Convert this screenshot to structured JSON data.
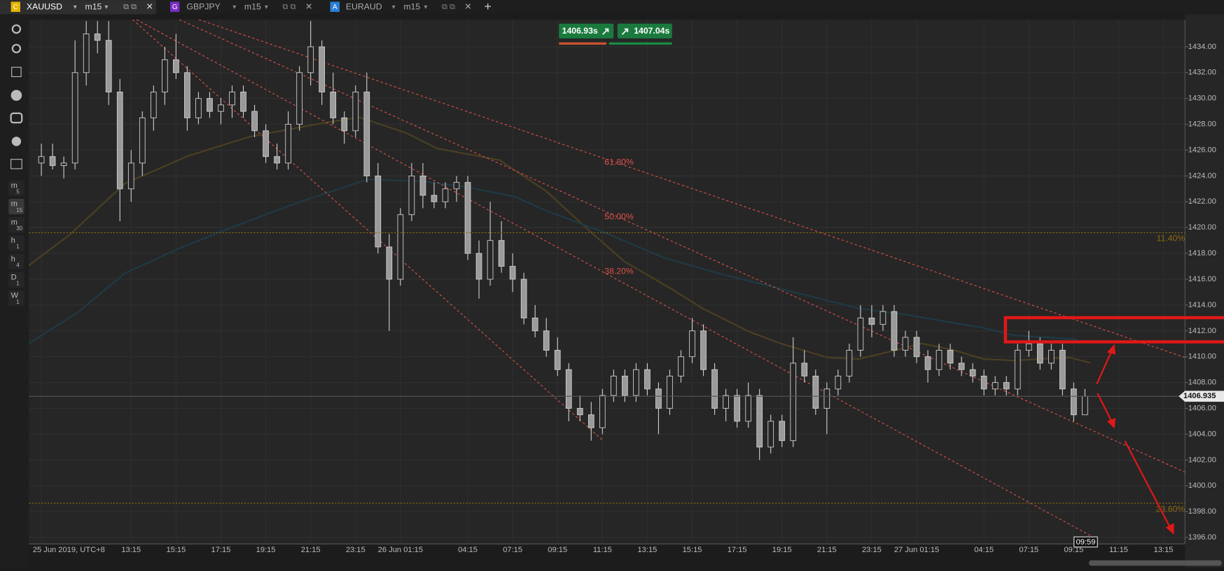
{
  "tabs": [
    {
      "letter": "C",
      "symbol": "XAUUSD",
      "timeframe": "m15"
    },
    {
      "letter": "G",
      "symbol": "GBPJPY",
      "timeframe": "m15"
    },
    {
      "letter": "A",
      "symbol": "EURAUD",
      "timeframe": "m15"
    }
  ],
  "toolbar": {
    "timeframes": [
      [
        "m",
        "5"
      ],
      [
        "m",
        "15"
      ],
      [
        "m",
        "30"
      ],
      [
        "h",
        "1"
      ],
      [
        "h",
        "4"
      ],
      [
        "D",
        "1"
      ],
      [
        "W",
        "1"
      ]
    ]
  },
  "trade_buttons": {
    "sell": "1406.93s",
    "buy": "1407.04s"
  },
  "chart_data": {
    "type": "candlestick",
    "categories": [
      "25 Jun 2019, UTC+8",
      null,
      null,
      null,
      null,
      null,
      null,
      null,
      "13:15",
      null,
      null,
      null,
      "15:15",
      null,
      null,
      null,
      "17:15",
      null,
      null,
      null,
      "19:15",
      null,
      null,
      null,
      "21:15",
      null,
      null,
      null,
      "23:15",
      null,
      null,
      null,
      "26 Jun 01:15",
      null,
      null,
      null,
      null,
      null,
      "04:15",
      null,
      null,
      null,
      "07:15",
      null,
      null,
      null,
      "09:15",
      null,
      null,
      null,
      "11:15",
      null,
      null,
      null,
      "13:15",
      null,
      null,
      null,
      "15:15",
      null,
      null,
      null,
      "17:15",
      null,
      null,
      null,
      "19:15",
      null,
      null,
      null,
      "21:15",
      null,
      null,
      null,
      "23:15",
      null,
      null,
      null,
      "27 Jun 01:15",
      null,
      null,
      null,
      null,
      null,
      "04:15",
      null,
      null,
      null,
      "07:15",
      null,
      null,
      null,
      "09:15",
      null,
      null,
      null,
      "11:15",
      null,
      null,
      null,
      "13:15",
      null
    ],
    "ohlc": [
      [
        1425,
        1426.5,
        1424,
        1425.5
      ],
      [
        1425.5,
        1426.5,
        1424.5,
        1424.8
      ],
      [
        1424.8,
        1425.5,
        1423.8,
        1425
      ],
      [
        1425,
        1434.5,
        1424.5,
        1432
      ],
      [
        1432,
        1436,
        1431,
        1435
      ],
      [
        1435,
        1436,
        1433.5,
        1434.5
      ],
      [
        1434.5,
        1436,
        1429.5,
        1430.5
      ],
      [
        1430.5,
        1431.5,
        1420.5,
        1423
      ],
      [
        1423,
        1426,
        1422,
        1425
      ],
      [
        1425,
        1429,
        1424,
        1428.5
      ],
      [
        1428.5,
        1431,
        1427.5,
        1430.5
      ],
      [
        1430.5,
        1434,
        1429.5,
        1433
      ],
      [
        1433,
        1435,
        1431.5,
        1432
      ],
      [
        1432,
        1432.5,
        1427.5,
        1428.5
      ],
      [
        1428.5,
        1430.5,
        1428,
        1430
      ],
      [
        1430,
        1430.5,
        1428.5,
        1429
      ],
      [
        1429,
        1430,
        1428,
        1429.5
      ],
      [
        1429.5,
        1431,
        1428.5,
        1430.5
      ],
      [
        1430.5,
        1431,
        1428.5,
        1429
      ],
      [
        1429,
        1429.5,
        1427,
        1427.5
      ],
      [
        1427.5,
        1428,
        1425,
        1425.5
      ],
      [
        1425.5,
        1426.5,
        1424.5,
        1425
      ],
      [
        1425,
        1429,
        1424.5,
        1428
      ],
      [
        1428,
        1432.5,
        1427.5,
        1432
      ],
      [
        1432,
        1436,
        1431,
        1434
      ],
      [
        1434,
        1434.5,
        1429.5,
        1430.5
      ],
      [
        1430.5,
        1432,
        1428,
        1428.5
      ],
      [
        1428.5,
        1429,
        1426.5,
        1427.5
      ],
      [
        1427.5,
        1431,
        1427,
        1430.5
      ],
      [
        1430.5,
        1432,
        1423.5,
        1424
      ],
      [
        1424,
        1425,
        1418,
        1418.5
      ],
      [
        1418.5,
        1419.5,
        1412,
        1416
      ],
      [
        1416,
        1421.5,
        1415.5,
        1421
      ],
      [
        1421,
        1425,
        1420.5,
        1424
      ],
      [
        1424,
        1425,
        1421.5,
        1422.5
      ],
      [
        1422.5,
        1423.5,
        1421.5,
        1422
      ],
      [
        1422,
        1423.5,
        1421.5,
        1423
      ],
      [
        1423,
        1424,
        1422,
        1423.5
      ],
      [
        1423.5,
        1424,
        1417.5,
        1418
      ],
      [
        1418,
        1419,
        1414.5,
        1416
      ],
      [
        1416,
        1422,
        1415.5,
        1419
      ],
      [
        1419,
        1420.5,
        1416.5,
        1417
      ],
      [
        1417,
        1418,
        1415,
        1416
      ],
      [
        1416,
        1416.5,
        1412.5,
        1413
      ],
      [
        1413,
        1414,
        1411.5,
        1412
      ],
      [
        1412,
        1413,
        1410,
        1410.5
      ],
      [
        1410.5,
        1411.5,
        1408.5,
        1409
      ],
      [
        1409,
        1409.5,
        1405,
        1406
      ],
      [
        1406,
        1407,
        1405,
        1405.5
      ],
      [
        1405.5,
        1406.5,
        1403.5,
        1404.5
      ],
      [
        1404.5,
        1407.5,
        1404,
        1407
      ],
      [
        1407,
        1409,
        1406.5,
        1408.5
      ],
      [
        1408.5,
        1409,
        1406.5,
        1407
      ],
      [
        1407,
        1409.5,
        1406.5,
        1409
      ],
      [
        1409,
        1409.5,
        1407,
        1407.5
      ],
      [
        1407.5,
        1408,
        1404,
        1406
      ],
      [
        1406,
        1409,
        1405.5,
        1408.5
      ],
      [
        1408.5,
        1410.5,
        1408,
        1410
      ],
      [
        1410,
        1413,
        1409.5,
        1412
      ],
      [
        1412,
        1412.5,
        1408.5,
        1409
      ],
      [
        1409,
        1409.5,
        1405.5,
        1406
      ],
      [
        1406,
        1407.5,
        1405,
        1407
      ],
      [
        1407,
        1407.5,
        1404.5,
        1405
      ],
      [
        1405,
        1408,
        1404.5,
        1407
      ],
      [
        1407,
        1407.5,
        1402,
        1403
      ],
      [
        1403,
        1405.5,
        1402.5,
        1405
      ],
      [
        1405,
        1405.5,
        1403,
        1403.5
      ],
      [
        1403.5,
        1411.5,
        1403,
        1409.5
      ],
      [
        1409.5,
        1410.5,
        1408,
        1408.5
      ],
      [
        1408.5,
        1409,
        1405.5,
        1406
      ],
      [
        1406,
        1408,
        1404,
        1407.5
      ],
      [
        1407.5,
        1409,
        1407,
        1408.5
      ],
      [
        1408.5,
        1411,
        1408,
        1410.5
      ],
      [
        1410.5,
        1414,
        1410,
        1413
      ],
      [
        1413,
        1414,
        1411.5,
        1412.5
      ],
      [
        1412.5,
        1414,
        1412,
        1413.5
      ],
      [
        1413.5,
        1414,
        1410,
        1410.5
      ],
      [
        1410.5,
        1412,
        1410,
        1411.5
      ],
      [
        1411.5,
        1412,
        1409.5,
        1410
      ],
      [
        1410,
        1410.5,
        1408,
        1409
      ],
      [
        1409,
        1411,
        1408.5,
        1410.5
      ],
      [
        1410.5,
        1411,
        1409,
        1409.5
      ],
      [
        1409.5,
        1410,
        1408.5,
        1409
      ],
      [
        1409,
        1409.5,
        1408,
        1408.5
      ],
      [
        1408.5,
        1409,
        1407,
        1407.5
      ],
      [
        1407.5,
        1408.5,
        1407,
        1408
      ],
      [
        1408,
        1408.5,
        1407,
        1407.5
      ],
      [
        1407.5,
        1411,
        1407,
        1410.5
      ],
      [
        1410.5,
        1412,
        1410,
        1411
      ],
      [
        1411,
        1411.5,
        1409,
        1409.5
      ],
      [
        1409.5,
        1411,
        1409,
        1410.5
      ],
      [
        1410.5,
        1411,
        1407,
        1407.5
      ],
      [
        1407.5,
        1408,
        1405,
        1405.5
      ],
      [
        1405.5,
        1407.5,
        1405.5,
        1406.935
      ],
      null,
      null,
      null,
      null,
      null,
      null,
      null,
      null
    ],
    "ylim": [
      1395.5,
      1436.1
    ],
    "yticks": [
      {
        "value": 1396,
        "label": "1396.00"
      },
      {
        "value": 1398,
        "label": "1398.00"
      },
      {
        "value": 1400,
        "label": "1400.00"
      },
      {
        "value": 1402,
        "label": "1402.00"
      },
      {
        "value": 1404,
        "label": "1404.00"
      },
      {
        "value": 1406,
        "label": "1406.00"
      },
      {
        "value": 1408,
        "label": "1408.00"
      },
      {
        "value": 1410,
        "label": "1410.00"
      },
      {
        "value": 1412,
        "label": "1412.00"
      },
      {
        "value": 1414,
        "label": "1414.00"
      },
      {
        "value": 1416,
        "label": "1416.00"
      },
      {
        "value": 1418,
        "label": "1418.00"
      },
      {
        "value": 1420,
        "label": "1420.00"
      },
      {
        "value": 1422,
        "label": "1422.00"
      },
      {
        "value": 1424,
        "label": "1424.00"
      },
      {
        "value": 1426,
        "label": "1426.00"
      },
      {
        "value": 1428,
        "label": "1428.00"
      },
      {
        "value": 1430,
        "label": "1430.00"
      },
      {
        "value": 1432,
        "label": "1432.00"
      },
      {
        "value": 1434,
        "label": "1434.00"
      }
    ],
    "grid": true,
    "current_price": 1406.935,
    "current_time": "09:59",
    "levels": [
      {
        "price": 1419.6,
        "text": "11.40%"
      },
      {
        "price": 1398.65,
        "text": "23.60%"
      }
    ],
    "fan_labels": [
      "61.80%",
      "50.00%",
      "38.20%"
    ],
    "colors": {
      "up": "#262626",
      "down": "#9a9a9a",
      "outline": "#cfcfcf",
      "level": "#8a6a12",
      "fan": "#e0504a"
    }
  }
}
